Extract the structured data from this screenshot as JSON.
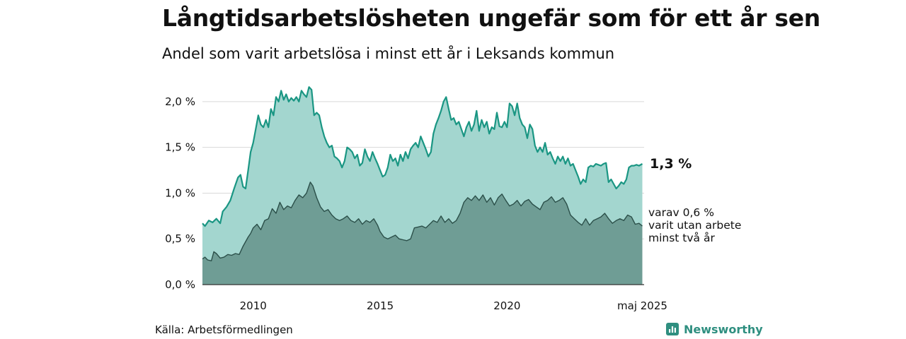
{
  "title": "Långtidsarbetslösheten ungefär som för ett år sen",
  "subtitle": "Andel som varit arbetslösa i minst ett år i Leksands kommun",
  "source": "Källa: Arbetsförmedlingen",
  "brand": "Newsworthy",
  "colors": {
    "total_fill": "#a3d6cf",
    "total_line": "#1a9683",
    "two_year_fill": "#6f9d95",
    "two_year_line": "#2b4f49",
    "grid": "#d9d9d9",
    "brand": "#2f8f80"
  },
  "chart_data": {
    "type": "area",
    "x_unit": "year",
    "xlim": [
      2008.0,
      2025.4
    ],
    "ylim": [
      0,
      2.2
    ],
    "x_ticks": [
      {
        "value": 2010,
        "label": "2010"
      },
      {
        "value": 2015,
        "label": "2015"
      },
      {
        "value": 2020,
        "label": "2020"
      },
      {
        "value": 2025.33,
        "label": "maj 2025"
      }
    ],
    "y_ticks": [
      {
        "value": 0.0,
        "label": "0,0 %"
      },
      {
        "value": 0.5,
        "label": "0,5 %"
      },
      {
        "value": 1.0,
        "label": "1,0 %"
      },
      {
        "value": 1.5,
        "label": "1,5 %"
      },
      {
        "value": 2.0,
        "label": "2,0 %"
      }
    ],
    "grid": true,
    "end_labels": {
      "total": "1,3 %",
      "two_year_lines": [
        "varav 0,6 %",
        "varit utan arbete",
        "minst två år"
      ]
    },
    "series": [
      {
        "key": "total",
        "points": [
          [
            2008.0,
            0.67
          ],
          [
            2008.1,
            0.64
          ],
          [
            2008.25,
            0.7
          ],
          [
            2008.4,
            0.68
          ],
          [
            2008.55,
            0.72
          ],
          [
            2008.7,
            0.67
          ],
          [
            2008.8,
            0.8
          ],
          [
            2008.95,
            0.85
          ],
          [
            2009.1,
            0.92
          ],
          [
            2009.25,
            1.05
          ],
          [
            2009.4,
            1.17
          ],
          [
            2009.5,
            1.2
          ],
          [
            2009.6,
            1.07
          ],
          [
            2009.7,
            1.05
          ],
          [
            2009.8,
            1.25
          ],
          [
            2009.9,
            1.45
          ],
          [
            2010.0,
            1.55
          ],
          [
            2010.1,
            1.7
          ],
          [
            2010.2,
            1.85
          ],
          [
            2010.3,
            1.75
          ],
          [
            2010.4,
            1.72
          ],
          [
            2010.5,
            1.8
          ],
          [
            2010.6,
            1.72
          ],
          [
            2010.7,
            1.92
          ],
          [
            2010.8,
            1.85
          ],
          [
            2010.9,
            2.05
          ],
          [
            2011.0,
            2.0
          ],
          [
            2011.1,
            2.12
          ],
          [
            2011.2,
            2.02
          ],
          [
            2011.3,
            2.08
          ],
          [
            2011.4,
            2.0
          ],
          [
            2011.5,
            2.04
          ],
          [
            2011.6,
            2.01
          ],
          [
            2011.7,
            2.05
          ],
          [
            2011.8,
            2.0
          ],
          [
            2011.9,
            2.12
          ],
          [
            2012.0,
            2.08
          ],
          [
            2012.1,
            2.05
          ],
          [
            2012.2,
            2.16
          ],
          [
            2012.3,
            2.13
          ],
          [
            2012.4,
            1.85
          ],
          [
            2012.5,
            1.88
          ],
          [
            2012.6,
            1.85
          ],
          [
            2012.7,
            1.72
          ],
          [
            2012.8,
            1.62
          ],
          [
            2012.9,
            1.55
          ],
          [
            2013.0,
            1.5
          ],
          [
            2013.1,
            1.52
          ],
          [
            2013.2,
            1.4
          ],
          [
            2013.3,
            1.38
          ],
          [
            2013.4,
            1.35
          ],
          [
            2013.5,
            1.28
          ],
          [
            2013.6,
            1.35
          ],
          [
            2013.7,
            1.5
          ],
          [
            2013.8,
            1.48
          ],
          [
            2013.9,
            1.45
          ],
          [
            2014.0,
            1.38
          ],
          [
            2014.1,
            1.42
          ],
          [
            2014.2,
            1.3
          ],
          [
            2014.3,
            1.33
          ],
          [
            2014.4,
            1.48
          ],
          [
            2014.5,
            1.4
          ],
          [
            2014.6,
            1.35
          ],
          [
            2014.7,
            1.45
          ],
          [
            2014.8,
            1.38
          ],
          [
            2014.9,
            1.32
          ],
          [
            2015.0,
            1.25
          ],
          [
            2015.1,
            1.18
          ],
          [
            2015.2,
            1.2
          ],
          [
            2015.3,
            1.28
          ],
          [
            2015.4,
            1.42
          ],
          [
            2015.5,
            1.35
          ],
          [
            2015.6,
            1.38
          ],
          [
            2015.7,
            1.3
          ],
          [
            2015.8,
            1.42
          ],
          [
            2015.9,
            1.35
          ],
          [
            2016.0,
            1.45
          ],
          [
            2016.1,
            1.38
          ],
          [
            2016.2,
            1.48
          ],
          [
            2016.3,
            1.52
          ],
          [
            2016.4,
            1.55
          ],
          [
            2016.5,
            1.5
          ],
          [
            2016.6,
            1.62
          ],
          [
            2016.7,
            1.55
          ],
          [
            2016.8,
            1.48
          ],
          [
            2016.9,
            1.4
          ],
          [
            2017.0,
            1.45
          ],
          [
            2017.1,
            1.65
          ],
          [
            2017.2,
            1.75
          ],
          [
            2017.3,
            1.82
          ],
          [
            2017.4,
            1.9
          ],
          [
            2017.5,
            2.0
          ],
          [
            2017.6,
            2.05
          ],
          [
            2017.7,
            1.92
          ],
          [
            2017.8,
            1.8
          ],
          [
            2017.9,
            1.82
          ],
          [
            2018.0,
            1.75
          ],
          [
            2018.1,
            1.78
          ],
          [
            2018.2,
            1.7
          ],
          [
            2018.3,
            1.62
          ],
          [
            2018.4,
            1.72
          ],
          [
            2018.5,
            1.78
          ],
          [
            2018.6,
            1.68
          ],
          [
            2018.7,
            1.75
          ],
          [
            2018.8,
            1.9
          ],
          [
            2018.9,
            1.68
          ],
          [
            2019.0,
            1.8
          ],
          [
            2019.1,
            1.72
          ],
          [
            2019.2,
            1.78
          ],
          [
            2019.3,
            1.65
          ],
          [
            2019.4,
            1.72
          ],
          [
            2019.5,
            1.7
          ],
          [
            2019.6,
            1.88
          ],
          [
            2019.7,
            1.73
          ],
          [
            2019.8,
            1.72
          ],
          [
            2019.9,
            1.78
          ],
          [
            2020.0,
            1.72
          ],
          [
            2020.1,
            1.98
          ],
          [
            2020.2,
            1.95
          ],
          [
            2020.3,
            1.85
          ],
          [
            2020.4,
            1.98
          ],
          [
            2020.5,
            1.82
          ],
          [
            2020.6,
            1.75
          ],
          [
            2020.7,
            1.72
          ],
          [
            2020.8,
            1.6
          ],
          [
            2020.9,
            1.75
          ],
          [
            2021.0,
            1.7
          ],
          [
            2021.1,
            1.52
          ],
          [
            2021.2,
            1.45
          ],
          [
            2021.3,
            1.5
          ],
          [
            2021.4,
            1.45
          ],
          [
            2021.5,
            1.55
          ],
          [
            2021.6,
            1.42
          ],
          [
            2021.7,
            1.45
          ],
          [
            2021.8,
            1.38
          ],
          [
            2021.9,
            1.32
          ],
          [
            2022.0,
            1.4
          ],
          [
            2022.1,
            1.35
          ],
          [
            2022.2,
            1.4
          ],
          [
            2022.3,
            1.32
          ],
          [
            2022.4,
            1.38
          ],
          [
            2022.5,
            1.3
          ],
          [
            2022.6,
            1.32
          ],
          [
            2022.7,
            1.25
          ],
          [
            2022.8,
            1.18
          ],
          [
            2022.9,
            1.1
          ],
          [
            2023.0,
            1.15
          ],
          [
            2023.1,
            1.12
          ],
          [
            2023.2,
            1.28
          ],
          [
            2023.3,
            1.3
          ],
          [
            2023.4,
            1.29
          ],
          [
            2023.5,
            1.32
          ],
          [
            2023.6,
            1.31
          ],
          [
            2023.7,
            1.3
          ],
          [
            2023.8,
            1.32
          ],
          [
            2023.9,
            1.33
          ],
          [
            2024.0,
            1.12
          ],
          [
            2024.1,
            1.15
          ],
          [
            2024.2,
            1.1
          ],
          [
            2024.3,
            1.05
          ],
          [
            2024.4,
            1.08
          ],
          [
            2024.5,
            1.12
          ],
          [
            2024.6,
            1.1
          ],
          [
            2024.7,
            1.15
          ],
          [
            2024.8,
            1.28
          ],
          [
            2024.9,
            1.3
          ],
          [
            2025.0,
            1.3
          ],
          [
            2025.1,
            1.31
          ],
          [
            2025.2,
            1.3
          ],
          [
            2025.33,
            1.32
          ]
        ]
      },
      {
        "key": "two_year",
        "points": [
          [
            2008.0,
            0.28
          ],
          [
            2008.1,
            0.3
          ],
          [
            2008.2,
            0.27
          ],
          [
            2008.35,
            0.26
          ],
          [
            2008.45,
            0.36
          ],
          [
            2008.55,
            0.34
          ],
          [
            2008.7,
            0.29
          ],
          [
            2008.85,
            0.3
          ],
          [
            2009.0,
            0.33
          ],
          [
            2009.15,
            0.32
          ],
          [
            2009.3,
            0.34
          ],
          [
            2009.45,
            0.33
          ],
          [
            2009.6,
            0.42
          ],
          [
            2009.7,
            0.47
          ],
          [
            2009.8,
            0.52
          ],
          [
            2009.9,
            0.56
          ],
          [
            2010.0,
            0.62
          ],
          [
            2010.15,
            0.66
          ],
          [
            2010.3,
            0.6
          ],
          [
            2010.45,
            0.7
          ],
          [
            2010.6,
            0.72
          ],
          [
            2010.75,
            0.83
          ],
          [
            2010.9,
            0.78
          ],
          [
            2011.05,
            0.9
          ],
          [
            2011.2,
            0.82
          ],
          [
            2011.35,
            0.86
          ],
          [
            2011.5,
            0.84
          ],
          [
            2011.65,
            0.92
          ],
          [
            2011.8,
            0.98
          ],
          [
            2011.95,
            0.95
          ],
          [
            2012.1,
            1.0
          ],
          [
            2012.25,
            1.12
          ],
          [
            2012.35,
            1.08
          ],
          [
            2012.5,
            0.95
          ],
          [
            2012.65,
            0.85
          ],
          [
            2012.8,
            0.8
          ],
          [
            2012.95,
            0.82
          ],
          [
            2013.1,
            0.76
          ],
          [
            2013.25,
            0.72
          ],
          [
            2013.4,
            0.7
          ],
          [
            2013.55,
            0.72
          ],
          [
            2013.7,
            0.75
          ],
          [
            2013.85,
            0.7
          ],
          [
            2014.0,
            0.68
          ],
          [
            2014.15,
            0.72
          ],
          [
            2014.3,
            0.66
          ],
          [
            2014.45,
            0.7
          ],
          [
            2014.6,
            0.68
          ],
          [
            2014.75,
            0.72
          ],
          [
            2014.9,
            0.65
          ],
          [
            2015.0,
            0.58
          ],
          [
            2015.15,
            0.52
          ],
          [
            2015.3,
            0.5
          ],
          [
            2015.45,
            0.52
          ],
          [
            2015.6,
            0.54
          ],
          [
            2015.75,
            0.5
          ],
          [
            2015.9,
            0.49
          ],
          [
            2016.05,
            0.48
          ],
          [
            2016.2,
            0.5
          ],
          [
            2016.35,
            0.62
          ],
          [
            2016.5,
            0.63
          ],
          [
            2016.65,
            0.64
          ],
          [
            2016.8,
            0.62
          ],
          [
            2016.95,
            0.66
          ],
          [
            2017.1,
            0.7
          ],
          [
            2017.25,
            0.68
          ],
          [
            2017.4,
            0.75
          ],
          [
            2017.55,
            0.68
          ],
          [
            2017.7,
            0.72
          ],
          [
            2017.85,
            0.67
          ],
          [
            2018.0,
            0.7
          ],
          [
            2018.15,
            0.78
          ],
          [
            2018.3,
            0.9
          ],
          [
            2018.45,
            0.95
          ],
          [
            2018.6,
            0.92
          ],
          [
            2018.75,
            0.97
          ],
          [
            2018.9,
            0.92
          ],
          [
            2019.05,
            0.98
          ],
          [
            2019.2,
            0.9
          ],
          [
            2019.35,
            0.95
          ],
          [
            2019.5,
            0.87
          ],
          [
            2019.65,
            0.95
          ],
          [
            2019.8,
            0.99
          ],
          [
            2019.95,
            0.92
          ],
          [
            2020.1,
            0.86
          ],
          [
            2020.25,
            0.88
          ],
          [
            2020.4,
            0.92
          ],
          [
            2020.55,
            0.86
          ],
          [
            2020.7,
            0.91
          ],
          [
            2020.85,
            0.93
          ],
          [
            2021.0,
            0.88
          ],
          [
            2021.15,
            0.85
          ],
          [
            2021.3,
            0.82
          ],
          [
            2021.45,
            0.9
          ],
          [
            2021.6,
            0.92
          ],
          [
            2021.75,
            0.96
          ],
          [
            2021.9,
            0.9
          ],
          [
            2022.05,
            0.92
          ],
          [
            2022.2,
            0.95
          ],
          [
            2022.35,
            0.88
          ],
          [
            2022.5,
            0.76
          ],
          [
            2022.65,
            0.72
          ],
          [
            2022.8,
            0.68
          ],
          [
            2022.95,
            0.65
          ],
          [
            2023.1,
            0.72
          ],
          [
            2023.25,
            0.65
          ],
          [
            2023.4,
            0.7
          ],
          [
            2023.55,
            0.72
          ],
          [
            2023.7,
            0.74
          ],
          [
            2023.85,
            0.78
          ],
          [
            2024.0,
            0.72
          ],
          [
            2024.15,
            0.67
          ],
          [
            2024.3,
            0.7
          ],
          [
            2024.45,
            0.72
          ],
          [
            2024.6,
            0.7
          ],
          [
            2024.75,
            0.76
          ],
          [
            2024.9,
            0.74
          ],
          [
            2025.05,
            0.66
          ],
          [
            2025.2,
            0.67
          ],
          [
            2025.33,
            0.64
          ]
        ]
      }
    ]
  }
}
